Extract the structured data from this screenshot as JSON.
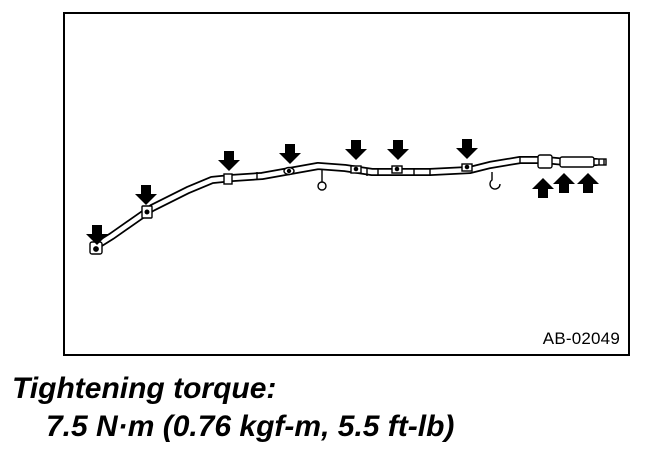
{
  "figure": {
    "code": "AB-02049"
  },
  "caption": {
    "title": "Tightening torque:",
    "value": "7.5 N·m (0.76 kgf-m, 5.5 ft-lb)"
  },
  "colors": {
    "line": "#000000",
    "background": "#ffffff"
  }
}
